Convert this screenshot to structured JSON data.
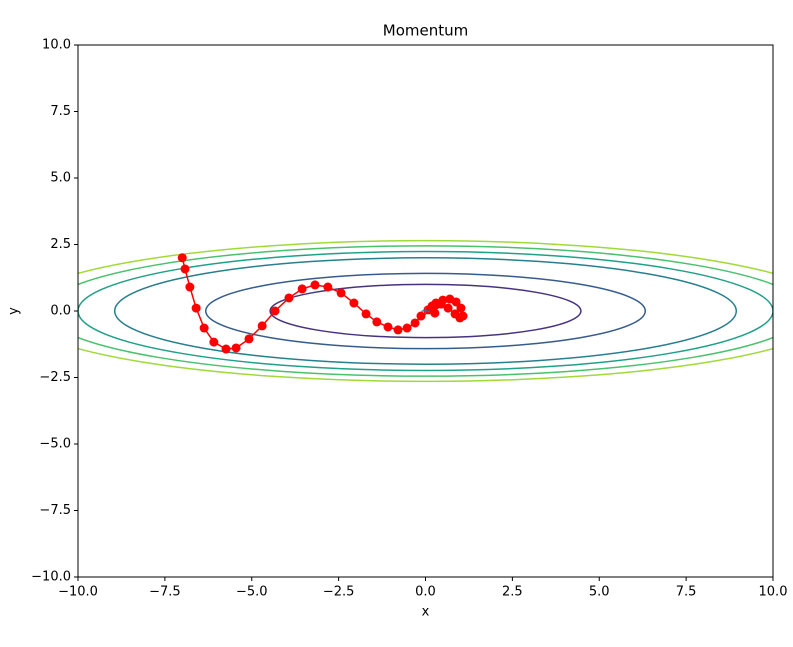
{
  "chart_data": {
    "type": "contour",
    "title": "Momentum",
    "xlabel": "x",
    "ylabel": "y",
    "xlim": [
      -10,
      10
    ],
    "ylim": [
      -10,
      10
    ],
    "xticks": [
      {
        "value": -10,
        "label": "−10.0"
      },
      {
        "value": -7.5,
        "label": "−7.5"
      },
      {
        "value": -5,
        "label": "−5.0"
      },
      {
        "value": -2.5,
        "label": "−2.5"
      },
      {
        "value": 0,
        "label": "0.0"
      },
      {
        "value": 2.5,
        "label": "2.5"
      },
      {
        "value": 5,
        "label": "5.0"
      },
      {
        "value": 7.5,
        "label": "7.5"
      },
      {
        "value": 10,
        "label": "10.0"
      }
    ],
    "yticks": [
      {
        "value": -10,
        "label": "−10.0"
      },
      {
        "value": -7.5,
        "label": "−7.5"
      },
      {
        "value": -5,
        "label": "−5.0"
      },
      {
        "value": -2.5,
        "label": "−2.5"
      },
      {
        "value": 0,
        "label": "0.0"
      },
      {
        "value": 2.5,
        "label": "2.5"
      },
      {
        "value": 5,
        "label": "5.0"
      },
      {
        "value": 7.5,
        "label": "7.5"
      },
      {
        "value": 10,
        "label": "10.0"
      }
    ],
    "contours": {
      "levels": [
        1,
        2,
        4,
        5,
        6,
        7
      ],
      "colors": [
        "#46327e",
        "#365c8d",
        "#277f8e",
        "#1fa187",
        "#4ac16d",
        "#a0da39"
      ]
    },
    "path": {
      "color": "#ff0000",
      "x": [
        -7,
        -6.92,
        -6.78,
        -6.6,
        -6.37,
        -6.09,
        -5.74,
        -5.45,
        -5.08,
        -4.7,
        -4.33,
        -3.93,
        -3.55,
        -3.18,
        -2.81,
        -2.43,
        -2.06,
        -1.71,
        -1.4,
        -1.08,
        -0.79,
        -0.53,
        -0.3,
        -0.13,
        0.07,
        0.3,
        0.5,
        0.7,
        0.88,
        1.02,
        1.08,
        0.99,
        0.85,
        0.65,
        0.45,
        0.3,
        0.19,
        0.16,
        0.27
      ],
      "y": [
        2,
        1.58,
        0.9,
        0.11,
        -0.64,
        -1.17,
        -1.43,
        -1.39,
        -1.05,
        -0.56,
        0,
        0.49,
        0.83,
        0.98,
        0.9,
        0.68,
        0.3,
        -0.11,
        -0.41,
        -0.6,
        -0.71,
        -0.64,
        -0.45,
        -0.19,
        0.04,
        0.23,
        0.41,
        0.45,
        0.34,
        0.11,
        -0.19,
        -0.26,
        -0.11,
        0.11,
        0.26,
        0.3,
        0.19,
        0.04,
        -0.08
      ]
    },
    "minimum": {
      "x": 0,
      "y": 0,
      "color": "#1f77b4"
    }
  }
}
